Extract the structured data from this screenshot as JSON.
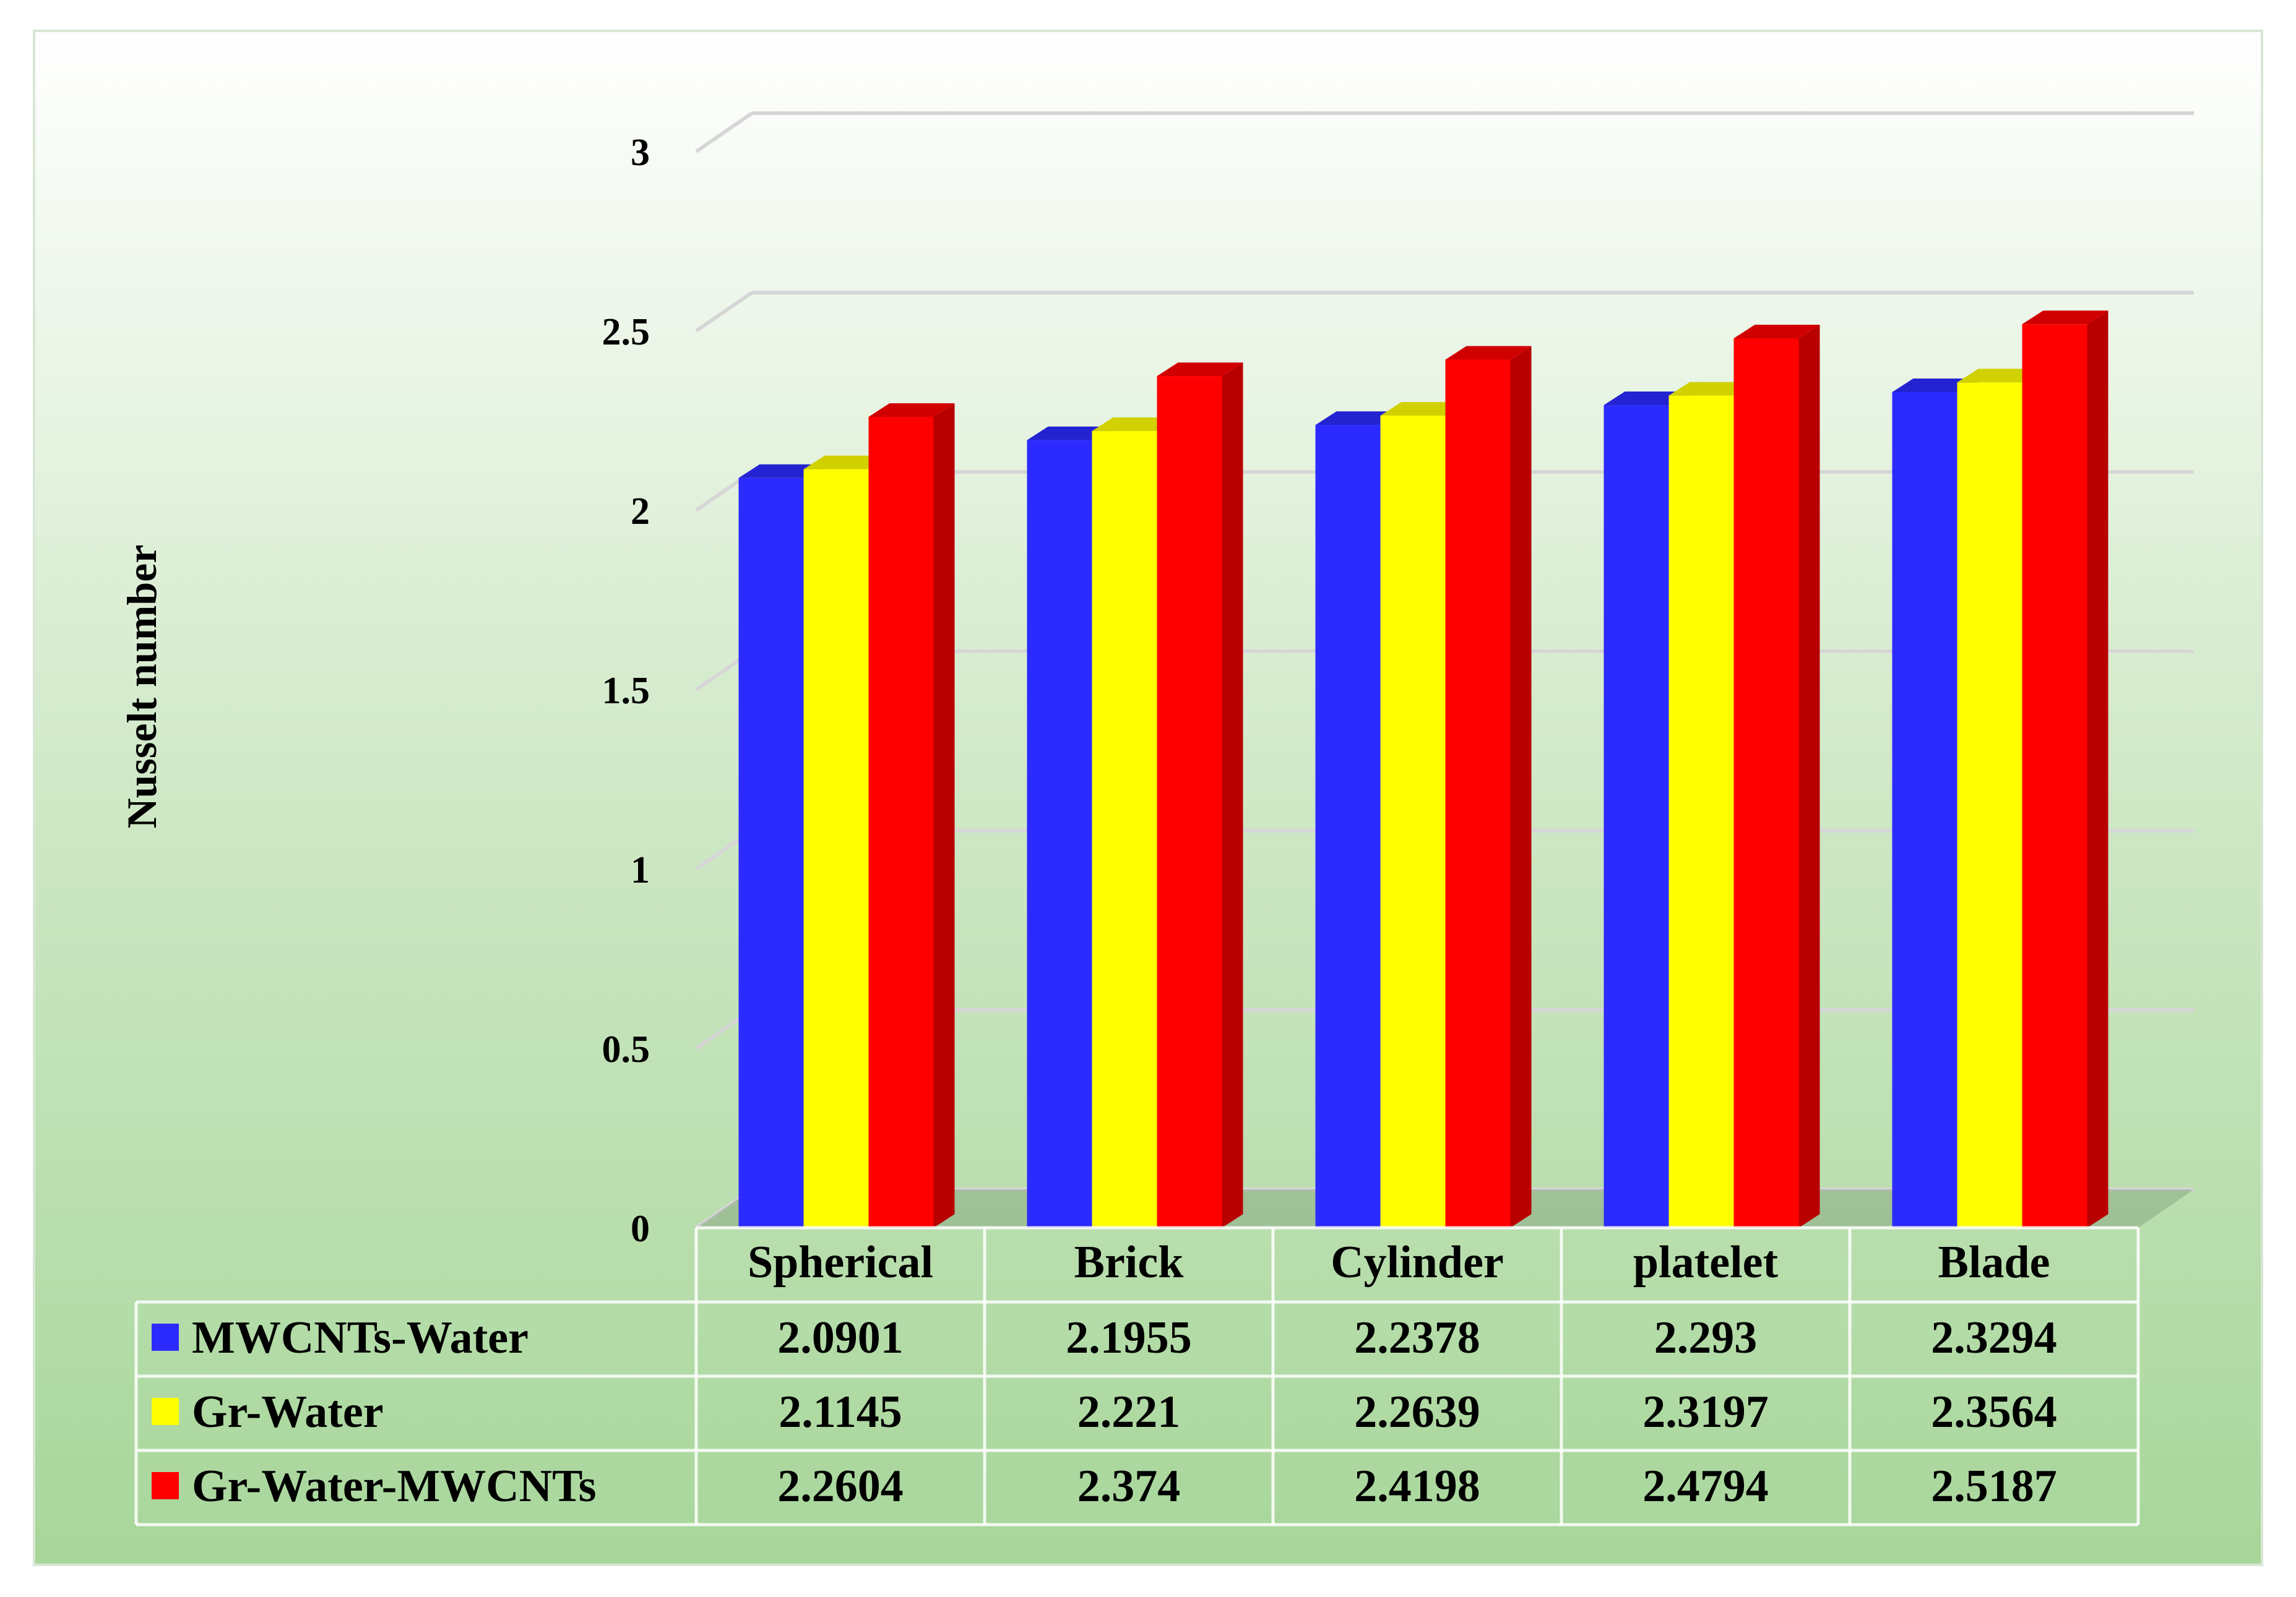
{
  "chart_data": {
    "type": "bar",
    "ylabel": "Nusselt number",
    "ylim": [
      0,
      3
    ],
    "yticks": [
      "0",
      "0.5",
      "1",
      "1.5",
      "2",
      "2.5",
      "3"
    ],
    "categories": [
      "Spherical",
      "Brick",
      "Cylinder",
      "platelet",
      "Blade"
    ],
    "series": [
      {
        "name": "MWCNTs-Water",
        "color": "#2b2bff",
        "values": [
          2.0901,
          2.1955,
          2.2378,
          2.293,
          2.3294
        ]
      },
      {
        "name": "Gr-Water",
        "color": "#ffff00",
        "values": [
          2.1145,
          2.221,
          2.2639,
          2.3197,
          2.3564
        ]
      },
      {
        "name": "Gr-Water-MWCNTs",
        "color": "#ff0000",
        "values": [
          2.2604,
          2.374,
          2.4198,
          2.4794,
          2.5187
        ]
      }
    ],
    "table": {
      "rows": [
        [
          "2.0901",
          "2.1955",
          "2.2378",
          "2.293",
          "2.3294"
        ],
        [
          "2.1145",
          "2.221",
          "2.2639",
          "2.3197",
          "2.3564"
        ],
        [
          "2.2604",
          "2.374",
          "2.4198",
          "2.4794",
          "2.5187"
        ]
      ]
    },
    "grid": true,
    "legend": "data-table"
  }
}
